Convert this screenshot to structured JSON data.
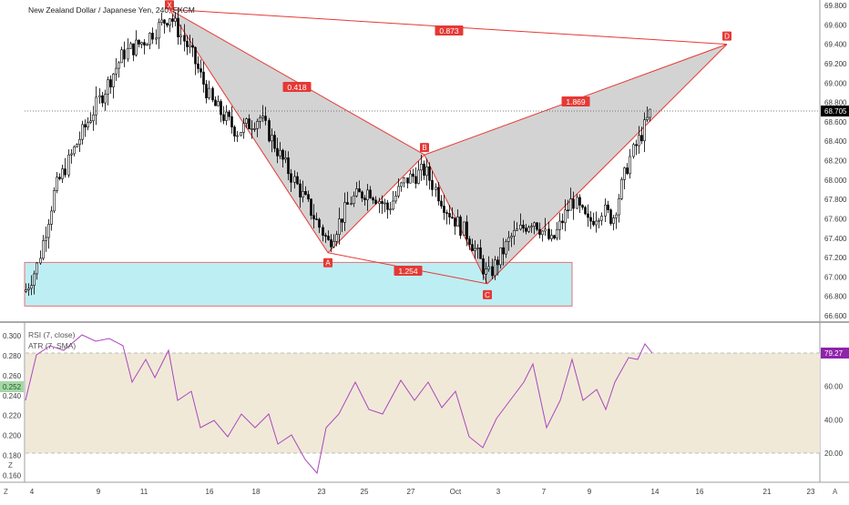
{
  "header": {
    "symbol_title": "New Zealand Dollar / Japanese Yen, 240, FXCM"
  },
  "price_scale": {
    "ticks": [
      "69.800",
      "69.600",
      "69.400",
      "69.200",
      "69.000",
      "68.800",
      "68.600",
      "68.400",
      "68.200",
      "68.000",
      "67.800",
      "67.600",
      "67.400",
      "67.200",
      "67.000",
      "66.800",
      "66.600"
    ],
    "current_price_label": "68.705"
  },
  "indicator_pane": {
    "rsi_legend": "RSI (7, close)",
    "atr_legend": "ATR (7, SMA)",
    "left_ticks": [
      "0.300",
      "0.280",
      "0.260",
      "0.240",
      "0.220",
      "0.200",
      "0.180",
      "0.160"
    ],
    "atr_current_label": "0.252",
    "right_ticks": [
      "60.00",
      "40.00",
      "20.00"
    ],
    "rsi_current_label": "79.27"
  },
  "time_axis": {
    "labels": [
      "4",
      "9",
      "11",
      "16",
      "18",
      "23",
      "25",
      "27",
      "Oct",
      "3",
      "7",
      "9",
      "14",
      "16",
      "21",
      "23"
    ]
  },
  "corner_labels": {
    "bottom_left": "Z",
    "bottom_right": "A",
    "pane_left_corner": "Z"
  },
  "colors": {
    "pattern_red": "#e53935",
    "pattern_fill": "#9e9e9e",
    "zone_fill": "#b2ebf2",
    "rsi_line": "#9c27b0",
    "rsi_band": "#f0e9d8",
    "candle": "#000000"
  },
  "chart_data": {
    "type": "candlestick",
    "symbol": "NZDJPY",
    "timeframe": "240",
    "ylim": [
      66.5,
      69.85
    ],
    "last_price": 68.705,
    "harmonic_points": [
      {
        "label": "X",
        "price": 69.76
      },
      {
        "label": "A",
        "price": 67.25
      },
      {
        "label": "B",
        "price": 68.26
      },
      {
        "label": "C",
        "price": 66.93
      },
      {
        "label": "D",
        "price": 69.4
      }
    ],
    "ratios": [
      "0.418",
      "1.254",
      "1.869",
      "0.873"
    ],
    "support_zone": {
      "low": 66.7,
      "high": 67.15
    },
    "rsi": {
      "period": 7,
      "overbought": 80,
      "oversold": 20,
      "last": 79.27
    },
    "atr": {
      "period": 7,
      "last": 0.252
    }
  }
}
